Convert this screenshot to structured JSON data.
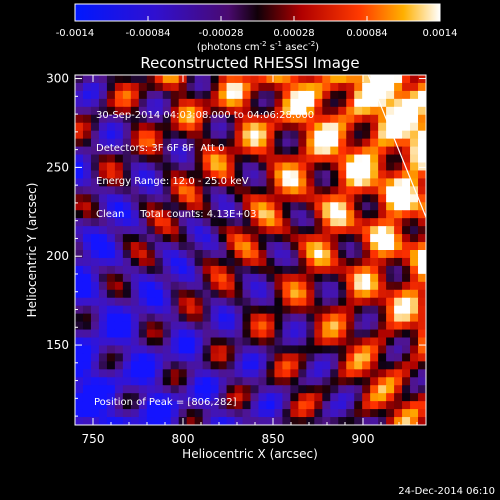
{
  "chart_data": {
    "type": "heatmap",
    "title": "Reconstructed RHESSI Image",
    "xlabel": "Heliocentric X (arcsec)",
    "ylabel": "Heliocentric Y (arcsec)",
    "xlim": [
      740,
      935
    ],
    "ylim": [
      105,
      302
    ],
    "x_ticks": [
      750,
      800,
      850,
      900
    ],
    "y_ticks": [
      150,
      200,
      250,
      300
    ],
    "colorbar": {
      "range": [
        -0.0014,
        0.0014
      ],
      "tick_labels": [
        "-0.0014",
        "-0.00084",
        "-0.00028",
        "0.00028",
        "0.00084",
        "0.0014"
      ],
      "tick_values": [
        -0.0014,
        -0.00084,
        -0.00028,
        0.00028,
        0.00084,
        0.0014
      ],
      "unit_prefix": "(photons cm",
      "unit_exp1": "-2",
      "unit_mid": " s",
      "unit_exp2": "-1",
      "unit_tail": " asec",
      "unit_exp3": "-2",
      "unit_close": ")"
    },
    "annotations": {
      "time_range": "30-Sep-2014 04:03:08.000 to 04:06:28.000",
      "detectors": "Detectors: 3F 6F 8F  Att 0",
      "energy": "Energy Range: 12.0 - 25.0 keV",
      "clean": "Clean     Total counts: 4.13E+03",
      "peak": "Position of Peak = [806,282]"
    },
    "peak": [
      806,
      282
    ],
    "limb_line": {
      "x": [
        903,
        935
      ],
      "y": [
        302,
        222
      ]
    }
  },
  "footer": {
    "date": "24-Dec-2014 06:10"
  },
  "colors": {
    "background": "#000000",
    "axes": "#ffffff",
    "limb": "#ffffff"
  }
}
